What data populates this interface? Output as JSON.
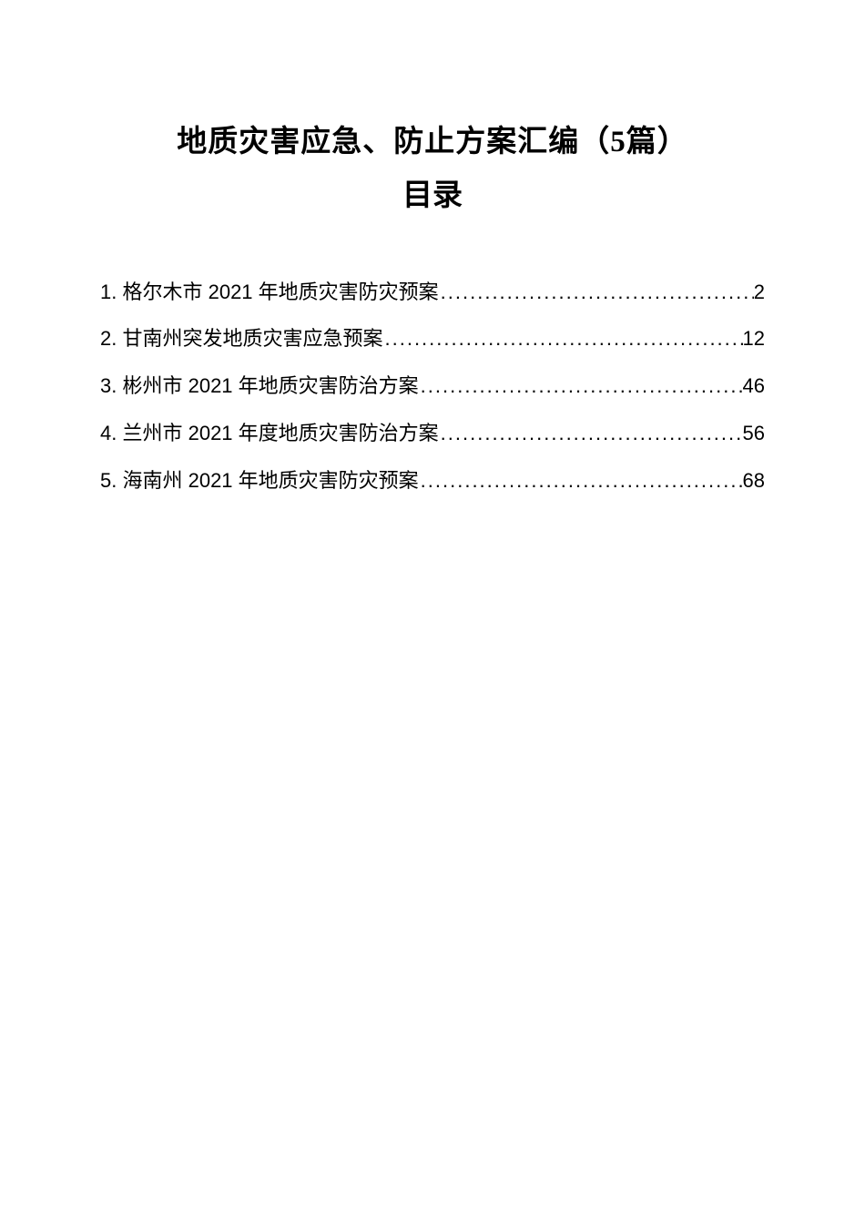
{
  "document": {
    "title": "地质灾害应急、防止方案汇编（5篇）",
    "subtitle": "目录",
    "background_color": "#ffffff",
    "text_color": "#000000",
    "title_fontsize": 33,
    "toc_fontsize": 22
  },
  "toc": {
    "items": [
      {
        "number": "1.",
        "text": "格尔木市 2021 年地质灾害防灾预案",
        "page": "2"
      },
      {
        "number": "2.",
        "text": "甘南州突发地质灾害应急预案",
        "page": "12"
      },
      {
        "number": "3.",
        "text": "彬州市 2021 年地质灾害防治方案",
        "page": "46"
      },
      {
        "number": "4.",
        "text": "兰州市 2021 年度地质灾害防治方案",
        "page": "56"
      },
      {
        "number": "5.",
        "text": "海南州 2021 年地质灾害防灾预案",
        "page": "68"
      }
    ]
  }
}
